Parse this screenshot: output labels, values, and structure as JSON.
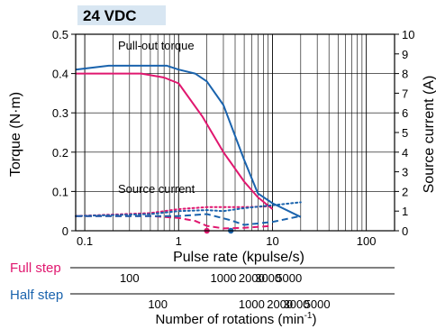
{
  "badge": "24 VDC",
  "chart_data": {
    "type": "line",
    "x_scale": "log",
    "xlim": [
      0.08,
      200
    ],
    "ylim_left": [
      0,
      0.5
    ],
    "ylim_right": [
      0,
      10
    ],
    "xlabel": "Pulse rate (kpulse/s)",
    "ylabel_left": "Torque (N·m)",
    "ylabel_right": "Source current (A)",
    "x_ticks": [
      0.1,
      1,
      10,
      100
    ],
    "x_tick_labels": [
      "0.1",
      "1",
      "10",
      "100"
    ],
    "y_left_ticks": [
      0,
      0.1,
      0.2,
      0.3,
      0.4,
      0.5
    ],
    "y_left_tick_labels": [
      "0",
      "0.1",
      "0.2",
      "0.3",
      "0.4",
      "0.5"
    ],
    "y_right_ticks": [
      0,
      1,
      2,
      3,
      4,
      5,
      6,
      7,
      8,
      9,
      10
    ],
    "y_right_tick_labels": [
      "0",
      "1",
      "2",
      "3",
      "4",
      "5",
      "6",
      "7",
      "8",
      "9",
      "10"
    ],
    "annotations": [
      "Pull-out torque",
      "Source current"
    ],
    "colors": {
      "full_step": "#e0176f",
      "half_step": "#1a63ad"
    },
    "series": [
      {
        "kind": "torque",
        "style": "solid",
        "color": "#e0176f",
        "x": [
          0.08,
          0.4,
          0.7,
          1.0,
          1.8,
          3.0,
          5.0,
          7.0,
          10
        ],
        "y": [
          0.4,
          0.4,
          0.39,
          0.375,
          0.29,
          0.2,
          0.125,
          0.085,
          0.055
        ]
      },
      {
        "kind": "torque",
        "style": "solid",
        "color": "#1a63ad",
        "x": [
          0.08,
          0.18,
          0.75,
          1.0,
          1.5,
          2.0,
          3.0,
          5.0,
          7.0,
          10,
          20
        ],
        "y": [
          0.41,
          0.42,
          0.42,
          0.41,
          0.4,
          0.38,
          0.32,
          0.18,
          0.095,
          0.07,
          0.035
        ]
      },
      {
        "kind": "current",
        "style": "dotted",
        "color": "#e0176f",
        "x": [
          0.08,
          0.5,
          1.0,
          2.0,
          5.0,
          10
        ],
        "y": [
          0.75,
          0.9,
          1.1,
          1.2,
          1.2,
          1.25
        ]
      },
      {
        "kind": "current",
        "style": "dotted",
        "color": "#1a63ad",
        "x": [
          0.08,
          0.5,
          1.0,
          2.0,
          3.0,
          5.0,
          10,
          20
        ],
        "y": [
          0.75,
          0.85,
          1.0,
          1.05,
          1.0,
          1.15,
          1.3,
          1.45
        ]
      },
      {
        "kind": "current",
        "style": "dashed",
        "color": "#e0176f",
        "x": [
          0.08,
          0.5,
          1.0,
          1.5,
          2.0,
          3.0,
          5.0,
          10
        ],
        "y": [
          0.75,
          0.75,
          0.65,
          0.5,
          0.25,
          0.12,
          0.15,
          0.25
        ]
      },
      {
        "kind": "current",
        "style": "dashed",
        "color": "#1a63ad",
        "x": [
          0.08,
          0.5,
          1.0,
          2.0,
          3.5,
          5.0,
          10,
          20
        ],
        "y": [
          0.75,
          0.75,
          0.75,
          0.85,
          0.55,
          0.3,
          0.45,
          0.75
        ]
      }
    ],
    "markers": [
      {
        "x": 2.0,
        "color": "#e0176f"
      },
      {
        "x": 3.6,
        "color": "#1a63ad"
      }
    ],
    "rotation_axes": {
      "full_step_label": "Full step",
      "half_step_label": "Half step",
      "full_step_ticks": [
        {
          "x": 0.3,
          "label": "100"
        },
        {
          "x": 3.0,
          "label": "1000"
        },
        {
          "x": 6.0,
          "label": "2000"
        },
        {
          "x": 9.0,
          "label": "3000"
        },
        {
          "x": 15.0,
          "label": "5000"
        }
      ],
      "half_step_ticks": [
        {
          "x": 0.6,
          "label": "100"
        },
        {
          "x": 6.0,
          "label": "1000"
        },
        {
          "x": 12.0,
          "label": "2000"
        },
        {
          "x": 18.0,
          "label": "3000"
        },
        {
          "x": 30.0,
          "label": "5000"
        }
      ],
      "title": "Number of rotations (min",
      "title_sup": "-1",
      "title_close": ")"
    }
  }
}
